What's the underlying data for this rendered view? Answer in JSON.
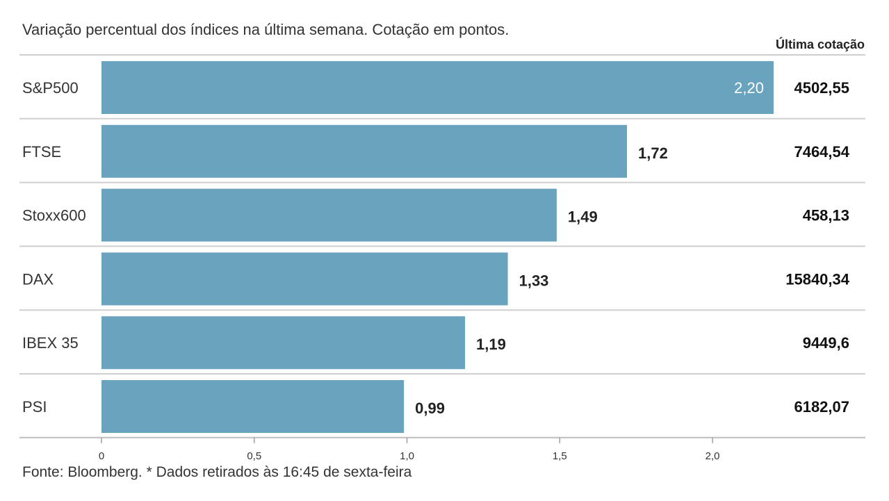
{
  "subtitle": "Variação percentual dos índices na última semana. Cotação em pontos.",
  "column_header": "Última cotação",
  "source": "Fonte: Bloomberg.  * Dados retirados às 16:45 de sexta-feira",
  "colors": {
    "bar": "#6aa3be",
    "grid": "#cfcfcf",
    "inside_label": "#ffffff"
  },
  "chart_data": {
    "type": "bar",
    "orientation": "horizontal",
    "categories": [
      "S&P500",
      "FTSE",
      "Stoxx600",
      "DAX",
      "IBEX 35",
      "PSI"
    ],
    "values": [
      2.2,
      1.72,
      1.49,
      1.33,
      1.19,
      0.99
    ],
    "value_labels": [
      "2,20",
      "1,72",
      "1,49",
      "1,33",
      "1,19",
      "0,99"
    ],
    "last_quote": [
      "4502,55",
      "7464,54",
      "458,13",
      "15840,34",
      "9449,6",
      "6182,07"
    ],
    "xlim": [
      0,
      2.2
    ],
    "xticks": [
      0,
      0.5,
      1.0,
      1.5,
      2.0
    ],
    "xtick_labels": [
      "0",
      "0,5",
      "1,0",
      "1,5",
      "2,0"
    ],
    "grid": false
  }
}
